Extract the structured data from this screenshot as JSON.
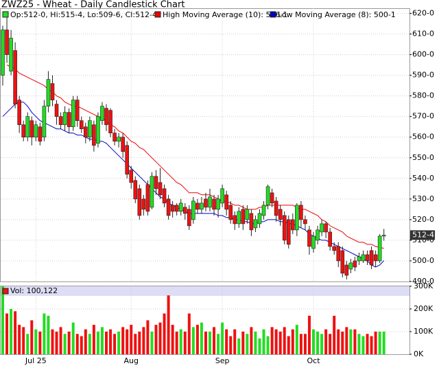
{
  "chart_data": {
    "type": "candlestick",
    "title": "ZWZ25 - Wheat - Daily Candlestick Chart",
    "ohlc_label": "Op:512-0, Hi:515-4, Lo:509-6, Cl:512-4",
    "last_label": "512-4",
    "up_color": "#22dd22",
    "down_color": "#ee1111",
    "grid": true,
    "categories": [
      null,
      null,
      null,
      null,
      null,
      null,
      null,
      null,
      "Jul 25",
      null,
      null,
      null,
      null,
      null,
      null,
      null,
      null,
      null,
      null,
      null,
      null,
      null,
      null,
      null,
      null,
      null,
      null,
      null,
      null,
      null,
      null,
      "Aug",
      null,
      null,
      null,
      null,
      null,
      null,
      null,
      null,
      null,
      null,
      null,
      null,
      null,
      null,
      null,
      null,
      null,
      null,
      null,
      null,
      null,
      "Sep",
      null,
      null,
      null,
      null,
      null,
      null,
      null,
      null,
      null,
      null,
      null,
      null,
      null,
      null,
      null,
      null,
      null,
      null,
      null,
      null,
      null,
      "Oct",
      null,
      null,
      null,
      null,
      null,
      null,
      null,
      null,
      null,
      null,
      null,
      null,
      null,
      null,
      null,
      null,
      null
    ],
    "open": [
      590,
      612,
      592,
      602,
      578,
      566,
      560,
      568,
      560,
      565,
      560,
      575,
      586,
      576,
      570,
      566,
      572,
      565,
      578,
      568,
      565,
      560,
      566,
      557,
      568,
      574,
      573,
      562,
      558,
      560,
      556,
      544,
      539,
      535,
      530,
      537,
      526,
      541,
      538,
      535,
      530,
      527,
      527,
      524,
      526,
      525,
      520,
      528,
      525,
      530,
      526,
      530,
      525,
      528,
      532,
      527,
      522,
      518,
      525,
      520,
      523,
      516,
      518,
      522,
      527,
      533,
      529,
      525,
      522,
      520,
      520,
      515,
      527,
      520,
      515,
      506,
      510,
      514,
      518,
      514,
      507,
      507,
      505,
      498,
      496,
      500,
      500,
      500,
      503,
      505,
      503,
      500,
      512
    ],
    "high": [
      614,
      618,
      612,
      606,
      580,
      568,
      572,
      570,
      568,
      567,
      578,
      592,
      590,
      578,
      572,
      575,
      574,
      580,
      580,
      570,
      567,
      570,
      568,
      572,
      577,
      576,
      574,
      564,
      562,
      562,
      558,
      546,
      541,
      537,
      532,
      539,
      543,
      544,
      545,
      537,
      532,
      529,
      528,
      530,
      528,
      527,
      531,
      530,
      531,
      533,
      535,
      532,
      532,
      537,
      534,
      529,
      524,
      526,
      527,
      527,
      525,
      522,
      525,
      529,
      537,
      535,
      531,
      527,
      524,
      522,
      523,
      528,
      529,
      522,
      517,
      514,
      517,
      520,
      519,
      516,
      509,
      509,
      507,
      500,
      501,
      502,
      504,
      505,
      505,
      507,
      505,
      513,
      515.5
    ],
    "low": [
      585,
      596,
      590,
      574,
      562,
      558,
      558,
      556,
      558,
      556,
      558,
      572,
      575,
      566,
      564,
      563,
      562,
      563,
      565,
      562,
      557,
      558,
      553,
      555,
      566,
      563,
      560,
      556,
      555,
      550,
      540,
      535,
      528,
      520,
      522,
      522,
      525,
      532,
      530,
      526,
      520,
      521,
      522,
      522,
      520,
      515,
      518,
      523,
      523,
      524,
      524,
      522,
      521,
      526,
      522,
      518,
      515,
      516,
      515,
      518,
      512,
      514,
      516,
      520,
      525,
      526,
      519,
      517,
      508,
      506,
      513,
      512,
      516,
      515,
      503,
      504,
      508,
      512,
      511,
      505,
      503,
      497,
      492,
      491,
      494,
      495,
      498,
      499,
      498,
      496,
      497,
      499,
      509.75
    ],
    "close": [
      612,
      600,
      608,
      576,
      566,
      560,
      570,
      560,
      566,
      558,
      575,
      588,
      578,
      570,
      566,
      572,
      565,
      578,
      568,
      564,
      560,
      568,
      556,
      570,
      575,
      566,
      562,
      558,
      560,
      553,
      542,
      538,
      530,
      522,
      525,
      524,
      541,
      535,
      532,
      528,
      522,
      524,
      524,
      528,
      523,
      517,
      529,
      525,
      528,
      526,
      531,
      525,
      530,
      535,
      525,
      520,
      518,
      524,
      518,
      525,
      515,
      520,
      523,
      527,
      536,
      528,
      522,
      520,
      510,
      508,
      515,
      527,
      520,
      518,
      507,
      512,
      515,
      518,
      514,
      507,
      505,
      500,
      494,
      493,
      499,
      497,
      502,
      503,
      500,
      498,
      500,
      512,
      512.5
    ],
    "series": [
      {
        "name": "High Moving Average (10): 506-1",
        "color": "#ee0000",
        "values": [
          null,
          595,
          594,
          593,
          591,
          590,
          589,
          588,
          587,
          586,
          585,
          583,
          582,
          580,
          579,
          577,
          576,
          575,
          575,
          574,
          573,
          572,
          571,
          570,
          569,
          568,
          566,
          565,
          563,
          562,
          560,
          558,
          557,
          555,
          554,
          552,
          550,
          548,
          546,
          544,
          542,
          540,
          538,
          537,
          535,
          533,
          533,
          533,
          532,
          532,
          532,
          531,
          530,
          529,
          529,
          528,
          527,
          527,
          526,
          525,
          525,
          525,
          526,
          526,
          527,
          527,
          527,
          527,
          527,
          527,
          527,
          526,
          525,
          525,
          524,
          523,
          522,
          520,
          519,
          517,
          516,
          515,
          514,
          512,
          511,
          510,
          509,
          509,
          508,
          508,
          507,
          506.5,
          506.125
        ]
      },
      {
        "name": "Low Moving Average (8): 500-1",
        "color": "#0000cc",
        "values": [
          570,
          572,
          574,
          576,
          577,
          577,
          575,
          572,
          570,
          568,
          567,
          566,
          565,
          564,
          564,
          563,
          562,
          562,
          561,
          561,
          560,
          559,
          559,
          558,
          558,
          557,
          555,
          553,
          551,
          549,
          547,
          545,
          543,
          541,
          539,
          537,
          535,
          533,
          531,
          530,
          528,
          527,
          526,
          525,
          524,
          523,
          523,
          523,
          523,
          523,
          523,
          523,
          522,
          522,
          521,
          521,
          520,
          520,
          519,
          519,
          518,
          518,
          519,
          519,
          520,
          520,
          520,
          519,
          519,
          518,
          518,
          517,
          516,
          515,
          513,
          512,
          511,
          510,
          510,
          509,
          508,
          507,
          506,
          505,
          504,
          503,
          502,
          501,
          500,
          498,
          497,
          498,
          500.125
        ]
      }
    ],
    "ylim": [
      490,
      622.5
    ],
    "yticks": [
      {
        "value": 620,
        "label": "620-0"
      },
      {
        "value": 610,
        "label": "610-0"
      },
      {
        "value": 600,
        "label": "600-0"
      },
      {
        "value": 590,
        "label": "590-0"
      },
      {
        "value": 580,
        "label": "580-0"
      },
      {
        "value": 570,
        "label": "570-0"
      },
      {
        "value": 560,
        "label": "560-0"
      },
      {
        "value": 550,
        "label": "550-0"
      },
      {
        "value": 540,
        "label": "540-0"
      },
      {
        "value": 530,
        "label": "530-0"
      },
      {
        "value": 520,
        "label": "520-0"
      },
      {
        "value": 510,
        "label": "510-0"
      },
      {
        "value": 500,
        "label": "500-0"
      },
      {
        "value": 490,
        "label": "490-0"
      }
    ],
    "volume": {
      "label": "Vol: 100,122",
      "color": "#ddddf6",
      "values": [
        300,
        180,
        200,
        190,
        130,
        120,
        90,
        150,
        110,
        100,
        180,
        170,
        110,
        100,
        120,
        90,
        100,
        140,
        90,
        80,
        110,
        90,
        130,
        100,
        120,
        100,
        110,
        90,
        100,
        120,
        110,
        130,
        90,
        100,
        120,
        150,
        100,
        130,
        140,
        180,
        260,
        130,
        100,
        110,
        100,
        180,
        120,
        130,
        140,
        100,
        100,
        120,
        90,
        140,
        110,
        80,
        110,
        70,
        100,
        90,
        120,
        100,
        70,
        110,
        80,
        120,
        110,
        100,
        120,
        80,
        110,
        130,
        90,
        90,
        170,
        110,
        100,
        90,
        110,
        90,
        170,
        110,
        100,
        120,
        110,
        110,
        90,
        80,
        90,
        80,
        100,
        100,
        100.122
      ],
      "ylim": [
        0,
        300
      ],
      "yticks": [
        {
          "value": 0,
          "label": "0K"
        },
        {
          "value": 100,
          "label": "100K"
        },
        {
          "value": 200,
          "label": "200K"
        },
        {
          "value": 300,
          "label": "300K"
        }
      ]
    }
  }
}
